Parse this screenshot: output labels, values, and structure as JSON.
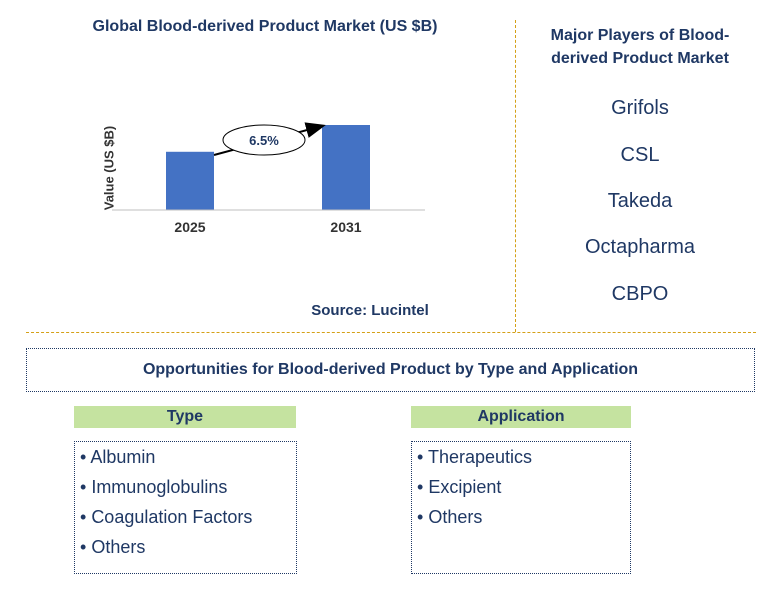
{
  "chart_data": {
    "type": "bar",
    "title": "Global Blood-derived Product Market (US $B)",
    "categories": [
      "2025",
      "2031"
    ],
    "values": [
      1.0,
      1.46
    ],
    "ylabel": "Value (US $B)",
    "xlabel": "",
    "annotation": "6.5%",
    "bar_color": "#4472c4"
  },
  "source": "Source: Lucintel",
  "players": {
    "title": "Major Players of Blood-derived Product Market",
    "items": [
      "Grifols",
      "CSL",
      "Takeda",
      "Octapharma",
      "CBPO"
    ]
  },
  "opportunities": {
    "title": "Opportunities for Blood-derived Product by Type and Application",
    "type_header": "Type",
    "type_items": [
      "Albumin",
      "Immunoglobulins",
      "Coagulation Factors",
      "Others"
    ],
    "application_header": "Application",
    "application_items": [
      "Therapeutics",
      "Excipient",
      "Others"
    ]
  },
  "colors": {
    "text": "#1f3864",
    "header_bg": "#c5e3a0",
    "divider": "#d4a017"
  }
}
